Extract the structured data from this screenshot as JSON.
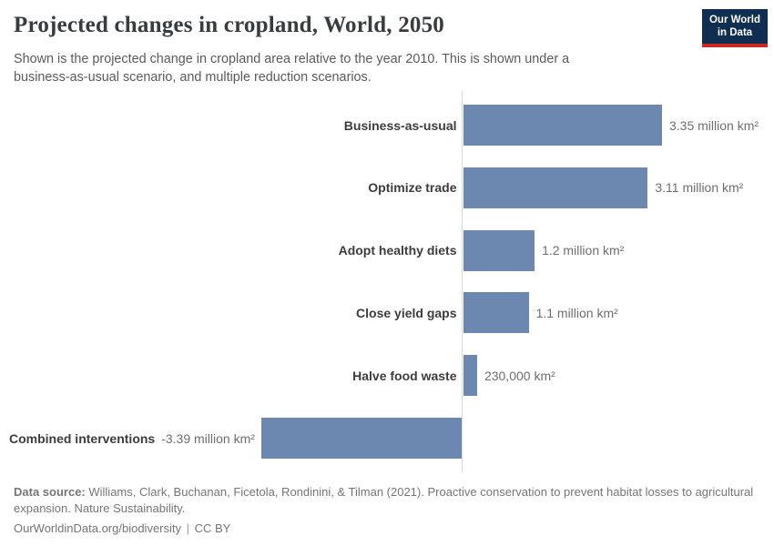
{
  "header": {
    "title": "Projected changes in cropland, World, 2050",
    "subtitle": "Shown is the projected change in cropland area relative to the year 2010. This is shown under a business-as-usual scenario, and multiple reduction scenarios.",
    "logo": {
      "line1": "Our World",
      "line2": "in Data"
    }
  },
  "colors": {
    "logo_navy": "#0f2e52",
    "logo_red": "#cb2821",
    "bar_blue": "#6d88b0",
    "axis_gray": "#d9d9d9"
  },
  "chart_data": {
    "type": "bar",
    "orientation": "horizontal",
    "title": "Projected changes in cropland, World, 2050",
    "unit": "million km²",
    "categories": [
      "Business-as-usual",
      "Optimize trade",
      "Adopt healthy diets",
      "Close yield gaps",
      "Halve food waste",
      "Combined interventions"
    ],
    "values": [
      3.35,
      3.11,
      1.2,
      1.1,
      0.23,
      -3.39
    ],
    "value_labels": [
      "3.35 million km²",
      "3.11 million km²",
      "1.2 million km²",
      "1.1 million km²",
      "230,000 km²",
      "-3.39 million km²"
    ],
    "xlim": [
      -3.39,
      3.35
    ],
    "bar_color": "#6d88b0",
    "axis_color": "#d9d9d9",
    "grid": false,
    "legend": false
  },
  "footer": {
    "source_label": "Data source:",
    "source_text": "Williams, Clark, Buchanan, Ficetola, Rondinini, & Tilman (2021). Proactive conservation to prevent habitat losses to agricultural expansion. Nature Sustainability.",
    "url": "OurWorldinData.org/biodiversity",
    "separator": "|",
    "license": "CC BY"
  }
}
